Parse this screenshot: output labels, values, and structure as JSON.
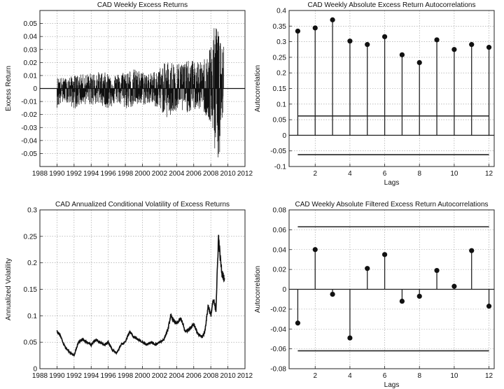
{
  "chart_data": [
    {
      "type": "line",
      "title": "CAD Weekly Excess Returns",
      "xlabel": "",
      "ylabel": "Excess Return",
      "xlim": [
        1988,
        2012
      ],
      "ylim": [
        -0.06,
        0.06
      ],
      "xticks": [
        1988,
        1990,
        1992,
        1994,
        1996,
        1998,
        2000,
        2002,
        2004,
        2006,
        2008,
        2010,
        2012
      ],
      "yticks": [
        -0.05,
        -0.04,
        -0.03,
        -0.02,
        -0.01,
        0,
        0.01,
        0.02,
        0.03,
        0.04,
        0.05
      ],
      "grid": true,
      "series": [
        {
          "x": [
            1990,
            1991,
            1992,
            1993,
            1994,
            1995,
            1996,
            1997,
            1998,
            1999,
            2000,
            2001,
            2002,
            2003,
            2004,
            2005,
            2006,
            2007,
            2008,
            2008.5,
            2009,
            2009.5
          ],
          "high": [
            0.009,
            0.008,
            0.01,
            0.011,
            0.012,
            0.013,
            0.012,
            0.011,
            0.014,
            0.015,
            0.013,
            0.012,
            0.016,
            0.022,
            0.02,
            0.021,
            0.022,
            0.02,
            0.035,
            0.05,
            0.055,
            0.04
          ],
          "low": [
            -0.015,
            -0.01,
            -0.016,
            -0.012,
            -0.013,
            -0.012,
            -0.016,
            -0.011,
            -0.016,
            -0.014,
            -0.013,
            -0.012,
            -0.016,
            -0.024,
            -0.018,
            -0.019,
            -0.017,
            -0.016,
            -0.03,
            -0.05,
            -0.057,
            -0.03
          ]
        }
      ]
    },
    {
      "type": "stem",
      "title": "CAD Weekly Absolute Excess Return Autocorrelations",
      "xlabel": "Lags",
      "ylabel": "Autocorrelation",
      "xlim": [
        0.5,
        12.3
      ],
      "ylim": [
        -0.1,
        0.4
      ],
      "xticks": [
        2,
        4,
        6,
        8,
        10,
        12
      ],
      "yticks": [
        -0.1,
        -0.05,
        0,
        0.05,
        0.1,
        0.15,
        0.2,
        0.25,
        0.3,
        0.35,
        0.4
      ],
      "grid": true,
      "lags": [
        1,
        2,
        3,
        4,
        5,
        6,
        7,
        8,
        9,
        10,
        11,
        12
      ],
      "values": [
        0.334,
        0.344,
        0.37,
        0.302,
        0.291,
        0.316,
        0.258,
        0.233,
        0.306,
        0.275,
        0.291,
        0.282
      ],
      "bounds": [
        0.062,
        -0.062
      ]
    },
    {
      "type": "line",
      "title": "CAD Annualized Conditional Volatility of Excess Returns",
      "xlabel": "",
      "ylabel": "Annualized Volatility",
      "xlim": [
        1988,
        2012
      ],
      "ylim": [
        0,
        0.3
      ],
      "xticks": [
        1988,
        1990,
        1992,
        1994,
        1996,
        1998,
        2000,
        2002,
        2004,
        2006,
        2008,
        2010,
        2012
      ],
      "yticks": [
        0,
        0.05,
        0.1,
        0.15,
        0.2,
        0.25,
        0.3
      ],
      "grid": true,
      "series": [
        {
          "x": [
            1990,
            1990.3,
            1990.7,
            1991,
            1991.5,
            1992,
            1992.5,
            1993,
            1993.5,
            1994,
            1994.5,
            1995,
            1995.5,
            1996,
            1996.5,
            1997,
            1997.5,
            1998,
            1998.5,
            1999,
            1999.5,
            2000,
            2000.5,
            2001,
            2001.5,
            2002,
            2002.5,
            2003,
            2003.3,
            2003.7,
            2004,
            2004.5,
            2005,
            2005.5,
            2006,
            2006.5,
            2007,
            2007.3,
            2007.7,
            2008,
            2008.3,
            2008.6,
            2008.9,
            2009.1,
            2009.3,
            2009.6
          ],
          "y": [
            0.07,
            0.065,
            0.05,
            0.04,
            0.03,
            0.025,
            0.05,
            0.055,
            0.05,
            0.045,
            0.055,
            0.05,
            0.045,
            0.05,
            0.035,
            0.03,
            0.045,
            0.05,
            0.07,
            0.06,
            0.055,
            0.05,
            0.045,
            0.05,
            0.045,
            0.05,
            0.055,
            0.075,
            0.1,
            0.09,
            0.085,
            0.095,
            0.07,
            0.075,
            0.085,
            0.065,
            0.06,
            0.07,
            0.12,
            0.1,
            0.13,
            0.11,
            0.25,
            0.21,
            0.18,
            0.17
          ]
        }
      ]
    },
    {
      "type": "stem",
      "title": "CAD Weekly Absolute Filtered Excess Return Autocorrelations",
      "xlabel": "Lags",
      "ylabel": "Autocorrelation",
      "xlim": [
        0.5,
        12.3
      ],
      "ylim": [
        -0.08,
        0.08
      ],
      "xticks": [
        2,
        4,
        6,
        8,
        10,
        12
      ],
      "yticks": [
        -0.08,
        -0.06,
        -0.04,
        -0.02,
        0,
        0.02,
        0.04,
        0.06,
        0.08
      ],
      "grid": true,
      "lags": [
        1,
        2,
        3,
        4,
        5,
        6,
        7,
        8,
        9,
        10,
        11,
        12
      ],
      "values": [
        -0.034,
        0.04,
        -0.005,
        -0.049,
        0.021,
        0.035,
        -0.012,
        -0.007,
        0.019,
        0.003,
        0.039,
        -0.017
      ],
      "bounds": [
        0.063,
        -0.062
      ]
    }
  ]
}
